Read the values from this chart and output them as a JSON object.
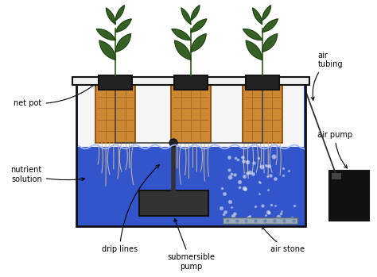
{
  "bg_color": "#ffffff",
  "tank_fill": "#3355cc",
  "tank_edge": "#111111",
  "water_fill": "#2244bb",
  "air_gap_fill": "#e8e8e8",
  "lid_fill": "#f0f0f0",
  "grow_medium": "#cc8833",
  "grow_edge": "#884400",
  "pot_fill": "#222222",
  "pump_fill": "#333333",
  "air_stone_fill": "#99aabb",
  "air_pump_fill": "#111111",
  "root_color": "#ccbba0",
  "leaf_color": "#2d5a1b",
  "leaf_edge": "#1a3a0f",
  "stem_color": "#2d5a1b",
  "drip_color": "#444444",
  "bubble_color": "#aabbdd",
  "arrow_color": "#000000",
  "labels": {
    "net_pot": "net pot",
    "nutrient_solution": "nutrient\nsolution",
    "drip_lines": "drip lines",
    "submersible_pump": "submersible\npump",
    "air_stone": "air stone",
    "air_tubing": "air\ntubing",
    "air_pump": "air pump"
  },
  "figsize": [
    4.74,
    3.49
  ],
  "dpi": 100
}
